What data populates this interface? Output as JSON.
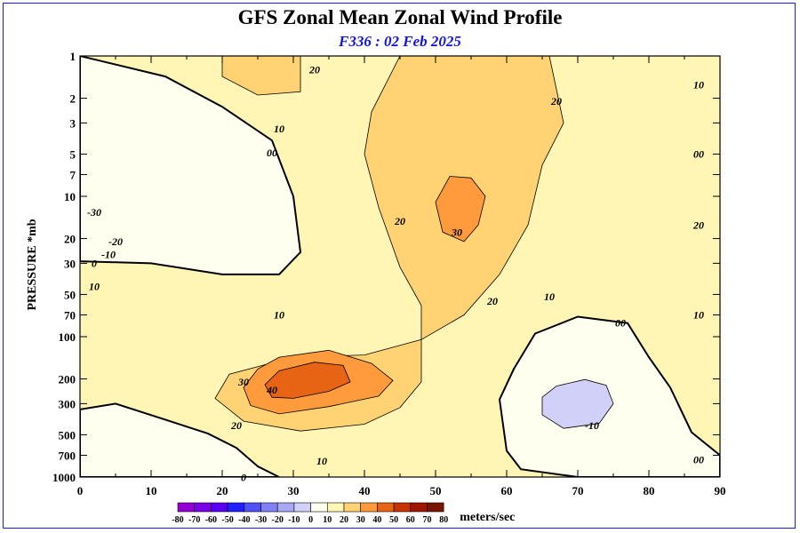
{
  "chart_data": {
    "type": "contour",
    "title": "GFS Zonal Mean Zonal Wind Profile",
    "subtitle": "F336 : 02 Feb 2025",
    "ylabel": "PRESSURE *mb",
    "xlabel": "",
    "x_ticks": [
      0,
      10,
      20,
      30,
      40,
      50,
      60,
      70,
      80,
      90
    ],
    "y_ticks": [
      1,
      2,
      3,
      5,
      7,
      10,
      20,
      30,
      50,
      70,
      100,
      200,
      300,
      500,
      700,
      1000
    ],
    "y_tick_labels": [
      "1",
      "2",
      "3",
      "5",
      "7",
      "10",
      "20",
      "30",
      "50",
      "70",
      "100",
      "200",
      "300",
      "500",
      "700",
      "1000"
    ],
    "xlim": [
      0,
      90
    ],
    "ylim": [
      1000,
      1
    ],
    "y_scale": "log",
    "colorbar": {
      "unit_label": "meters/sec",
      "levels": [
        -80,
        -70,
        -60,
        -50,
        -40,
        -30,
        -20,
        -10,
        0,
        10,
        20,
        30,
        40,
        50,
        60,
        70,
        80
      ],
      "level_labels": [
        "-80",
        "-70",
        "-60",
        "-50",
        "-40",
        "-30",
        "-20",
        "-10",
        "0",
        "10",
        "20",
        "30",
        "40",
        "50",
        "60",
        "70",
        "80"
      ],
      "colors": [
        "#9400d3",
        "#7a00e6",
        "#5a00f0",
        "#2020ff",
        "#5050f5",
        "#8080f5",
        "#a8a8f5",
        "#d0d0f8",
        "#fffff0",
        "#fff5b4",
        "#ffd273",
        "#ff9b3c",
        "#e66414",
        "#c83200",
        "#a01400",
        "#781400",
        "#966e28"
      ]
    },
    "regions": [
      {
        "level": -30,
        "points": [
          [
            0,
            2
          ],
          [
            5,
            2.6
          ],
          [
            6,
            7
          ],
          [
            3,
            14
          ],
          [
            0,
            17
          ]
        ]
      },
      {
        "level": -20,
        "points": [
          [
            0,
            1.5
          ],
          [
            6,
            1.7
          ],
          [
            10,
            3
          ],
          [
            11,
            9
          ],
          [
            9,
            16
          ],
          [
            5,
            21
          ],
          [
            0,
            22
          ]
        ]
      },
      {
        "level": -10,
        "points": [
          [
            0,
            1.2
          ],
          [
            12,
            1.6
          ],
          [
            16,
            3
          ],
          [
            17,
            8
          ],
          [
            16,
            15
          ],
          [
            12,
            21
          ],
          [
            5,
            25
          ],
          [
            0,
            26
          ]
        ]
      },
      {
        "level": 0,
        "points": [
          [
            0,
            1
          ],
          [
            12,
            1.4
          ],
          [
            20,
            2.3
          ],
          [
            27,
            4
          ],
          [
            30,
            10
          ],
          [
            31,
            25
          ],
          [
            28,
            36
          ],
          [
            20,
            36
          ],
          [
            10,
            30
          ],
          [
            0,
            29
          ]
        ]
      },
      {
        "level": 0,
        "points": [
          [
            64,
            95
          ],
          [
            70,
            72
          ],
          [
            77,
            80
          ],
          [
            80,
            140
          ],
          [
            83,
            230
          ],
          [
            86,
            480
          ],
          [
            90,
            700
          ],
          [
            90,
            1000
          ],
          [
            70,
            1000
          ],
          [
            62,
            880
          ],
          [
            60,
            650
          ],
          [
            59,
            280
          ],
          [
            61,
            170
          ]
        ]
      },
      {
        "level": -10,
        "points": [
          [
            67,
            225
          ],
          [
            71,
            202
          ],
          [
            74,
            222
          ],
          [
            75,
            300
          ],
          [
            73,
            415
          ],
          [
            68,
            450
          ],
          [
            65,
            360
          ],
          [
            65,
            270
          ]
        ]
      },
      {
        "level": 0,
        "points": [
          [
            0,
            330
          ],
          [
            5,
            300
          ],
          [
            12,
            390
          ],
          [
            18,
            490
          ],
          [
            22,
            620
          ],
          [
            25,
            840
          ],
          [
            28,
            1000
          ],
          [
            0,
            1000
          ]
        ]
      },
      {
        "level": 20,
        "points": [
          [
            20,
            1
          ],
          [
            31,
            1
          ],
          [
            31,
            1.8
          ],
          [
            25,
            1.9
          ],
          [
            20,
            1.4
          ]
        ]
      },
      {
        "level": 20,
        "points": [
          [
            45,
            1
          ],
          [
            66,
            1
          ],
          [
            68,
            3
          ],
          [
            65,
            6
          ],
          [
            63,
            16
          ],
          [
            59,
            36
          ],
          [
            54,
            70
          ],
          [
            48,
            105
          ],
          [
            40,
            135
          ],
          [
            30,
            140
          ],
          [
            21,
            185
          ],
          [
            19,
            275
          ],
          [
            23,
            400
          ],
          [
            31,
            470
          ],
          [
            40,
            420
          ],
          [
            45,
            320
          ],
          [
            48,
            210
          ],
          [
            48,
            60
          ],
          [
            45,
            32
          ],
          [
            42,
            12
          ],
          [
            40,
            5
          ],
          [
            41,
            2.5
          ]
        ]
      },
      {
        "level": 30,
        "points": [
          [
            52,
            7.2
          ],
          [
            55,
            7.4
          ],
          [
            57,
            10
          ],
          [
            56,
            16
          ],
          [
            54,
            21
          ],
          [
            51,
            18
          ],
          [
            50,
            11
          ]
        ]
      },
      {
        "level": 30,
        "points": [
          [
            28,
            140
          ],
          [
            35,
            125
          ],
          [
            41,
            155
          ],
          [
            44,
            205
          ],
          [
            42,
            265
          ],
          [
            35,
            315
          ],
          [
            28,
            355
          ],
          [
            24,
            310
          ],
          [
            23,
            230
          ],
          [
            25,
            170
          ]
        ]
      },
      {
        "level": 40,
        "points": [
          [
            28,
            175
          ],
          [
            33,
            152
          ],
          [
            37,
            160
          ],
          [
            38,
            210
          ],
          [
            35,
            245
          ],
          [
            30,
            275
          ],
          [
            27,
            270
          ],
          [
            26,
            220
          ]
        ]
      }
    ],
    "contour_labels": [
      {
        "x": 33,
        "y": 1.25,
        "text": "20"
      },
      {
        "x": 28,
        "y": 3.3,
        "text": "10"
      },
      {
        "x": 27,
        "y": 4.9,
        "text": "00"
      },
      {
        "x": 2,
        "y": 13,
        "text": "-30"
      },
      {
        "x": 5,
        "y": 21,
        "text": "-20"
      },
      {
        "x": 4,
        "y": 26,
        "text": "-10"
      },
      {
        "x": 2,
        "y": 30,
        "text": "0"
      },
      {
        "x": 2,
        "y": 44,
        "text": "10"
      },
      {
        "x": 28,
        "y": 70,
        "text": "10"
      },
      {
        "x": 45,
        "y": 15,
        "text": "20"
      },
      {
        "x": 53,
        "y": 18,
        "text": "30"
      },
      {
        "x": 58,
        "y": 56,
        "text": "20"
      },
      {
        "x": 66,
        "y": 52,
        "text": "10"
      },
      {
        "x": 67,
        "y": 2.1,
        "text": "20"
      },
      {
        "x": 87,
        "y": 1.6,
        "text": "10"
      },
      {
        "x": 87,
        "y": 5,
        "text": "00"
      },
      {
        "x": 87,
        "y": 16,
        "text": "20"
      },
      {
        "x": 87,
        "y": 70,
        "text": "10"
      },
      {
        "x": 76,
        "y": 80,
        "text": "00"
      },
      {
        "x": 23,
        "y": 210,
        "text": "30"
      },
      {
        "x": 27,
        "y": 240,
        "text": "40"
      },
      {
        "x": 22,
        "y": 430,
        "text": "20"
      },
      {
        "x": 34,
        "y": 770,
        "text": "10"
      },
      {
        "x": 23,
        "y": 1010,
        "text": "0"
      },
      {
        "x": 72,
        "y": 430,
        "text": "-10"
      },
      {
        "x": 87,
        "y": 750,
        "text": "00"
      }
    ]
  }
}
